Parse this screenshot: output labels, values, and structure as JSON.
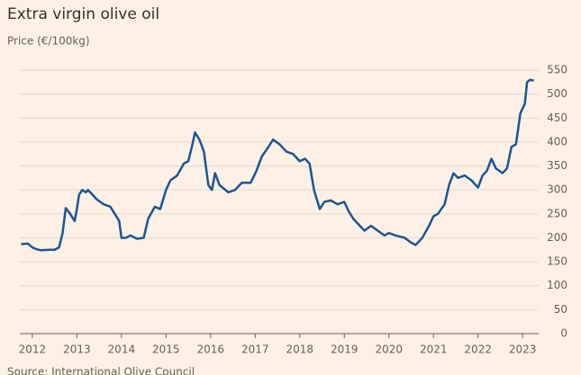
{
  "chart_data": {
    "type": "line",
    "title": "Extra virgin olive oil",
    "subtitle": "Price (€/100kg)",
    "source": "Source: International Olive Council",
    "color": "#1c5596",
    "grid": true,
    "xlim": [
      2011.72,
      2023.36
    ],
    "ylim": [
      0,
      550
    ],
    "xticks": [
      2012,
      2013,
      2014,
      2015,
      2016,
      2017,
      2018,
      2019,
      2020,
      2021,
      2022,
      2023
    ],
    "yticks": [
      0,
      50,
      100,
      150,
      200,
      250,
      300,
      350,
      400,
      450,
      500,
      550
    ],
    "x": [
      2011.75,
      2011.9,
      2012.0,
      2012.1,
      2012.2,
      2012.4,
      2012.5,
      2012.6,
      2012.68,
      2012.75,
      2012.85,
      2012.95,
      2013.0,
      2013.05,
      2013.12,
      2013.2,
      2013.25,
      2013.35,
      2013.45,
      2013.6,
      2013.75,
      2013.85,
      2013.95,
      2014.0,
      2014.1,
      2014.2,
      2014.35,
      2014.5,
      2014.6,
      2014.75,
      2014.87,
      2015.0,
      2015.1,
      2015.25,
      2015.4,
      2015.5,
      2015.58,
      2015.65,
      2015.75,
      2015.85,
      2015.95,
      2016.03,
      2016.1,
      2016.2,
      2016.4,
      2016.55,
      2016.7,
      2016.9,
      2017.03,
      2017.15,
      2017.3,
      2017.4,
      2017.55,
      2017.7,
      2017.85,
      2018.0,
      2018.12,
      2018.22,
      2018.32,
      2018.45,
      2018.55,
      2018.7,
      2018.85,
      2019.0,
      2019.1,
      2019.2,
      2019.3,
      2019.45,
      2019.6,
      2019.75,
      2019.9,
      2020.0,
      2020.15,
      2020.35,
      2020.5,
      2020.6,
      2020.75,
      2020.9,
      2021.0,
      2021.1,
      2021.25,
      2021.35,
      2021.45,
      2021.55,
      2021.7,
      2021.85,
      2022.0,
      2022.1,
      2022.2,
      2022.3,
      2022.4,
      2022.55,
      2022.65,
      2022.75,
      2022.85,
      2022.95,
      2023.05,
      2023.1,
      2023.17,
      2023.25
    ],
    "values": [
      187,
      188,
      180,
      176,
      174,
      175,
      175,
      180,
      210,
      262,
      250,
      235,
      260,
      290,
      300,
      295,
      300,
      290,
      280,
      270,
      265,
      250,
      235,
      200,
      200,
      205,
      198,
      200,
      240,
      265,
      260,
      300,
      320,
      330,
      355,
      360,
      390,
      420,
      405,
      380,
      310,
      300,
      335,
      310,
      295,
      300,
      315,
      315,
      340,
      370,
      390,
      405,
      395,
      380,
      375,
      360,
      365,
      355,
      300,
      260,
      275,
      278,
      270,
      275,
      255,
      240,
      230,
      215,
      225,
      215,
      205,
      210,
      205,
      200,
      190,
      185,
      200,
      225,
      245,
      250,
      270,
      310,
      335,
      325,
      330,
      320,
      305,
      330,
      340,
      365,
      345,
      335,
      345,
      390,
      395,
      460,
      480,
      525,
      530,
      528
    ]
  }
}
